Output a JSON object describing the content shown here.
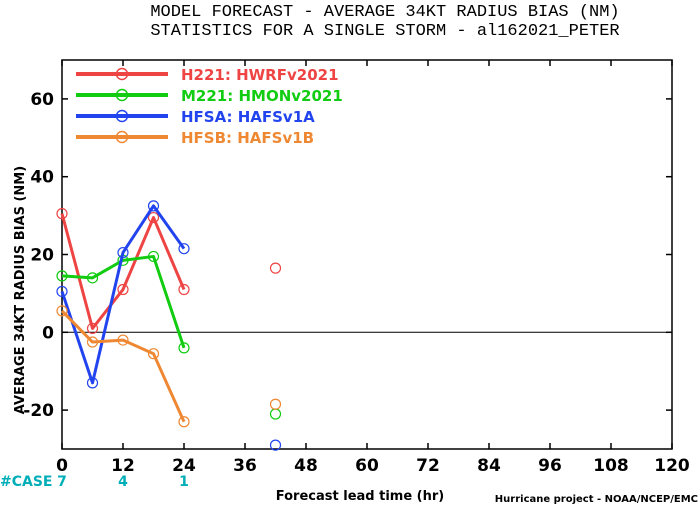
{
  "title_line1": "MODEL FORECAST - AVERAGE 34KT RADIUS BIAS (NM)",
  "title_line2": "STATISTICS FOR A SINGLE STORM - al162021_PETER",
  "footer": "Hurricane project - NOAA/NCEP/EMC",
  "case_label": "#CASE",
  "case_counts": [
    {
      "x": 0,
      "label": "7"
    },
    {
      "x": 12,
      "label": "4"
    },
    {
      "x": 24,
      "label": "1"
    }
  ],
  "colors": {
    "H221": "#ee4444",
    "M221": "#11cc11",
    "HFSA": "#2244ee",
    "HFSB": "#ee8833",
    "case": "#00aeb8",
    "zero_line": "#000000"
  },
  "chart_data": {
    "type": "line",
    "title": "MODEL FORECAST - AVERAGE 34KT RADIUS BIAS (NM)",
    "subtitle": "STATISTICS FOR A SINGLE STORM - al162021_PETER",
    "xlabel": "Forecast lead time (hr)",
    "ylabel": "AVERAGE 34KT RADIUS BIAS (NM)",
    "xlim": [
      0,
      120
    ],
    "ylim": [
      -30,
      70
    ],
    "xticks": [
      "0",
      "12",
      "24",
      "36",
      "48",
      "60",
      "72",
      "84",
      "96",
      "108",
      "120"
    ],
    "xtick_values": [
      0,
      12,
      24,
      36,
      48,
      60,
      72,
      84,
      96,
      108,
      120
    ],
    "yticks": [
      "-20",
      "0",
      "20",
      "40",
      "60"
    ],
    "ytick_values": [
      -20,
      0,
      20,
      40,
      60
    ],
    "legend_position": "top-left",
    "series": [
      {
        "key": "H221",
        "name": "H221: HWRFv2021",
        "color": "#ee4444",
        "points": [
          [
            0,
            30.5
          ],
          [
            6,
            1.0
          ],
          [
            12,
            11.0
          ],
          [
            18,
            29.5
          ],
          [
            24,
            11.0
          ]
        ],
        "isolated": [
          [
            42,
            16.5
          ]
        ]
      },
      {
        "key": "M221",
        "name": "M221: HMONv2021",
        "color": "#11cc11",
        "points": [
          [
            0,
            14.5
          ],
          [
            6,
            14.0
          ],
          [
            12,
            18.5
          ],
          [
            18,
            19.5
          ],
          [
            24,
            -4.0
          ]
        ],
        "isolated": [
          [
            42,
            -21.0
          ]
        ]
      },
      {
        "key": "HFSA",
        "name": "HFSA: HAFSv1A",
        "color": "#2244ee",
        "points": [
          [
            0,
            10.5
          ],
          [
            6,
            -13.0
          ],
          [
            12,
            20.5
          ],
          [
            18,
            32.5
          ],
          [
            24,
            21.5
          ]
        ],
        "isolated": [
          [
            42,
            -29.0
          ]
        ]
      },
      {
        "key": "HFSB",
        "name": "HFSB: HAFSv1B",
        "color": "#ee8833",
        "points": [
          [
            0,
            5.5
          ],
          [
            6,
            -2.5
          ],
          [
            12,
            -2.0
          ],
          [
            18,
            -5.5
          ],
          [
            24,
            -23.0
          ]
        ],
        "isolated": [
          [
            42,
            -18.5
          ]
        ]
      }
    ]
  }
}
